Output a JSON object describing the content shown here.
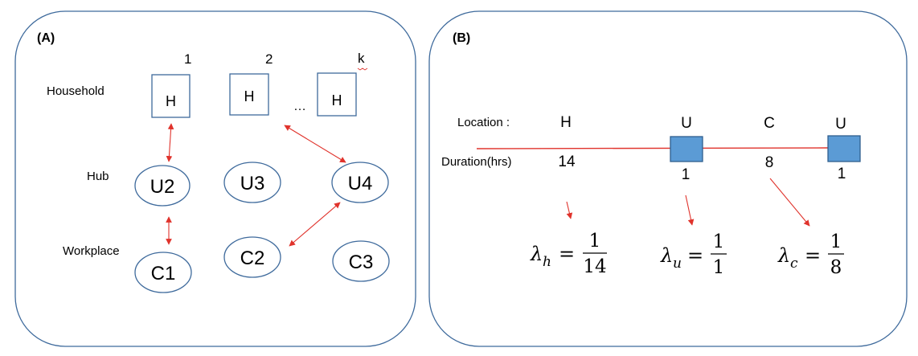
{
  "panel_a": {
    "label": "(A)",
    "row_labels": {
      "household": "Household",
      "hub": "Hub",
      "workplace": "Workplace"
    },
    "household_indices": [
      "1",
      "2",
      "k"
    ],
    "ellipsis": "…",
    "households": [
      "H",
      "H",
      "H"
    ],
    "hubs": [
      "U2",
      "U3",
      "U4"
    ],
    "workplaces": [
      "C1",
      "C2",
      "C3"
    ]
  },
  "panel_b": {
    "label": "(B)",
    "location_label": "Location :",
    "duration_label": "Duration(hrs)",
    "locations": [
      "H",
      "U",
      "C",
      "U"
    ],
    "durations": [
      "14",
      "1",
      "8",
      "1"
    ],
    "rates": [
      {
        "symbol": "λ",
        "subscript": "h",
        "eq": "=",
        "numerator": "1",
        "denominator": "14"
      },
      {
        "symbol": "λ",
        "subscript": "u",
        "eq": "=",
        "numerator": "1",
        "denominator": "1"
      },
      {
        "symbol": "λ",
        "subscript": "c",
        "eq": "=",
        "numerator": "1",
        "denominator": "8"
      }
    ]
  },
  "colors": {
    "frame": "#3e6a9c",
    "arrow": "#e0332c",
    "block": "#5b9bd5"
  }
}
